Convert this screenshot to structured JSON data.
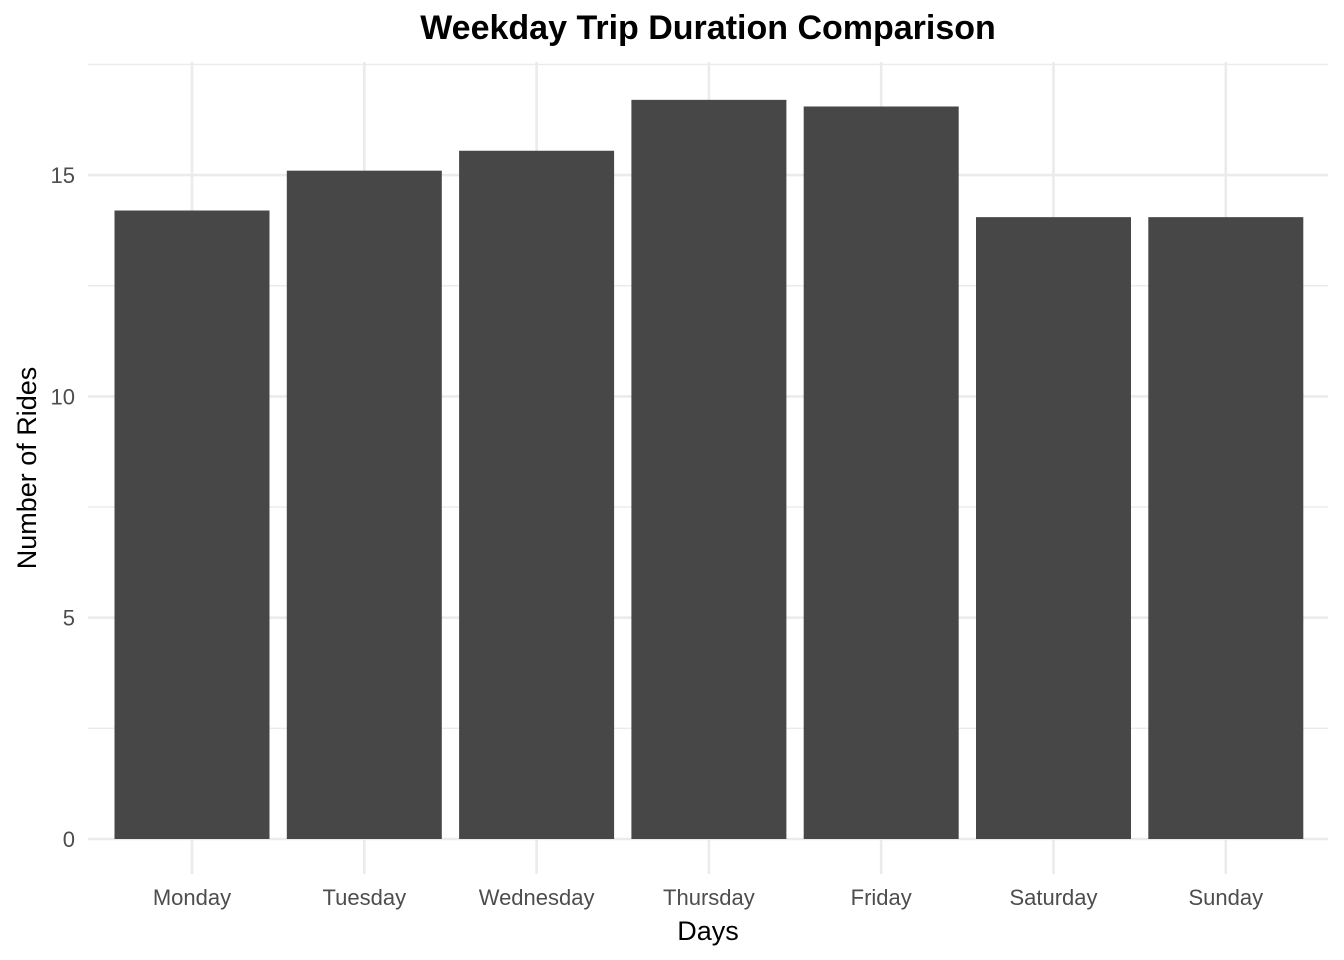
{
  "chart_data": {
    "type": "bar",
    "title": "Weekday Trip Duration Comparison",
    "xlabel": "Days",
    "ylabel": "Number of Rides",
    "categories": [
      "Monday",
      "Tuesday",
      "Wednesday",
      "Thursday",
      "Friday",
      "Saturday",
      "Sunday"
    ],
    "values": [
      14.2,
      15.1,
      15.55,
      16.7,
      16.55,
      14.05,
      14.05
    ],
    "ylim": [
      0,
      17.5
    ],
    "yticks": [
      0,
      5,
      10,
      15
    ],
    "ytick_labels": [
      "0",
      "5",
      "10",
      "15"
    ],
    "grid": true,
    "bar_color": "#474747"
  }
}
